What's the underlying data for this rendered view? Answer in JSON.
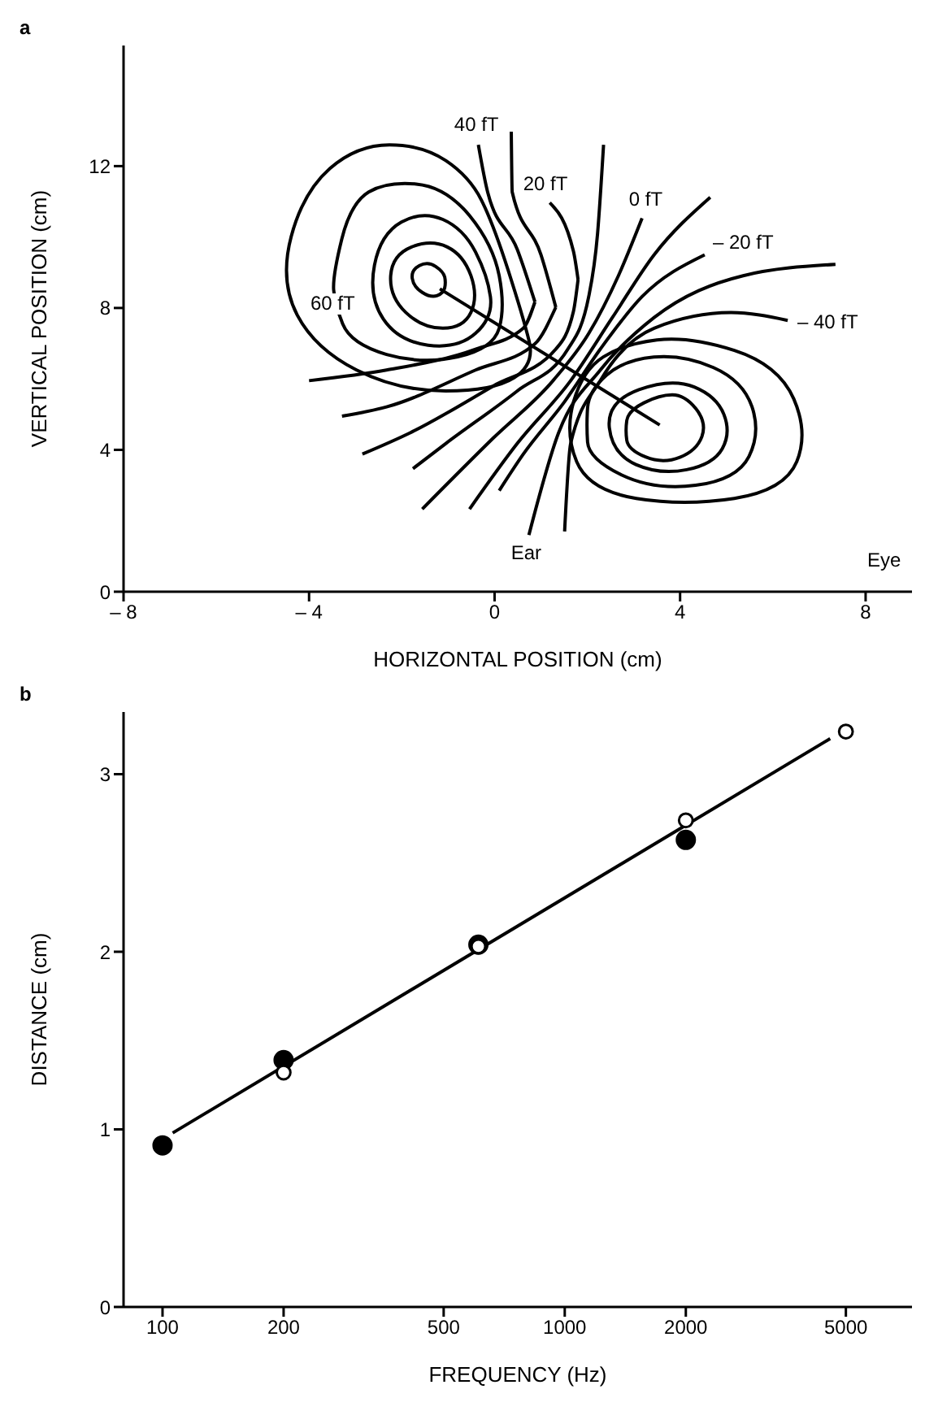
{
  "chart_data": [
    {
      "type": "line",
      "xlabel": "HORIZONTAL POSITION (cm)",
      "ylabel": "VERTICAL POSITION (cm)",
      "xlim": [
        -8,
        9
      ],
      "ylim": [
        0,
        15.4
      ],
      "xticks": [
        {
          "value": -8,
          "label": "– 8"
        },
        {
          "value": -4,
          "label": "– 4"
        },
        0,
        4,
        8
      ],
      "yticks": [
        0,
        4,
        8,
        12
      ],
      "marker": "none",
      "annotations": [
        "a",
        {
          "text": "40 fT",
          "x": -0.35,
          "y": 12.6
        },
        {
          "text": "20 fT",
          "x": 1.19,
          "y": 10.97
        },
        {
          "text": "0 fT",
          "x": 3.18,
          "y": 10.53
        },
        {
          "text": "– 20 fT",
          "x": 4.53,
          "y": 9.5
        },
        {
          "text": "– 40 fT",
          "x": 6.32,
          "y": 7.65
        },
        "60 fT",
        {
          "text": "Ear",
          "x": 0.74,
          "y": 1.6
        },
        "Eye"
      ],
      "series": [
        {
          "color": "#000000",
          "x": [
            -0.35,
            -0.15,
            0.49,
            0.87
          ],
          "values": [
            12.6,
            11.27,
            9.65,
            8.17
          ]
        },
        {
          "color": "#000000",
          "x": [
            -4.0,
            -2.33,
            -0.41,
            0.62,
            0.87
          ],
          "values": [
            5.95,
            6.25,
            6.84,
            7.43,
            8.17
          ]
        },
        {
          "color": "#000000",
          "x": [
            0.36,
            0.38,
            1.0,
            1.32
          ],
          "values": [
            12.97,
            11.27,
            9.5,
            8.02
          ]
        },
        {
          "color": "#000000",
          "x": [
            -3.29,
            -2.33,
            -0.41,
            0.87,
            1.32
          ],
          "values": [
            4.95,
            5.21,
            6.25,
            6.99,
            8.02
          ]
        },
        {
          "color": "#000000",
          "x": [
            1.19,
            1.7,
            1.8
          ],
          "values": [
            10.97,
            9.6,
            8.8
          ]
        },
        {
          "color": "#000000",
          "x": [
            -2.85,
            -1.82,
            -0.03,
            1.32,
            1.7,
            1.8
          ],
          "values": [
            3.88,
            4.48,
            5.8,
            6.84,
            7.9,
            8.8
          ]
        },
        {
          "color": "#000000",
          "x": [
            -1.76,
            -1.05,
            0.49,
            1.58,
            2.03,
            2.22,
            2.35
          ],
          "values": [
            3.47,
            4.18,
            5.66,
            6.84,
            8.32,
            10.09,
            12.6
          ]
        },
        {
          "color": "#000000",
          "x": [
            -1.56,
            -0.03,
            1.26,
            2.03,
            2.67,
            3.18
          ],
          "values": [
            2.33,
            4.33,
            5.95,
            7.28,
            8.91,
            10.53
          ]
        },
        {
          "color": "#000000",
          "x": [
            -0.54,
            0.49,
            1.64,
            2.54,
            3.44,
            4.65
          ],
          "values": [
            2.33,
            4.18,
            5.95,
            7.73,
            9.5,
            11.12
          ]
        },
        {
          "color": "#000000",
          "x": [
            0.1,
            0.62,
            1.51,
            2.28,
            3.18,
            4.53
          ],
          "values": [
            2.85,
            3.88,
            5.36,
            6.84,
            8.32,
            9.5
          ]
        },
        {
          "color": "#000000",
          "x": [
            0.74,
            1.38,
            2.28,
            3.44,
            5.36,
            7.35
          ],
          "values": [
            1.6,
            4.48,
            6.25,
            7.73,
            8.91,
            9.23
          ]
        },
        {
          "color": "#000000",
          "x": [
            1.51,
            1.64,
            2.28,
            3.44,
            5.1,
            6.32
          ],
          "values": [
            1.7,
            4.18,
            5.95,
            7.43,
            7.87,
            7.65
          ]
        },
        {
          "color": "#000000",
          "x": [
            -1.18,
            3.56
          ],
          "values": [
            8.54,
            4.7
          ]
        }
      ]
    },
    {
      "type": "scatter",
      "xlabel": "FREQUENCY (Hz)",
      "ylabel": "DISTANCE  (cm)",
      "log": "x",
      "xlim": [
        80,
        7300
      ],
      "ylim": [
        0,
        3.35
      ],
      "xticks": [
        100,
        200,
        500,
        1000,
        2000,
        5000
      ],
      "yticks": [
        0,
        1,
        2,
        3
      ],
      "marker": "circle",
      "annotations": [
        "b"
      ],
      "series": [
        {
          "type": "line",
          "color": "#000000",
          "marker": "none",
          "x": [
            106,
            4570
          ],
          "values": [
            0.98,
            3.2
          ]
        },
        {
          "color": "#000000",
          "x": [
            100,
            200,
            610,
            2000
          ],
          "values": [
            0.91,
            1.39,
            2.04,
            2.63
          ]
        },
        {
          "color": "#ffffff",
          "x": [
            200,
            610,
            2000,
            5000
          ],
          "values": [
            1.32,
            2.03,
            2.74,
            3.24
          ]
        }
      ]
    }
  ]
}
